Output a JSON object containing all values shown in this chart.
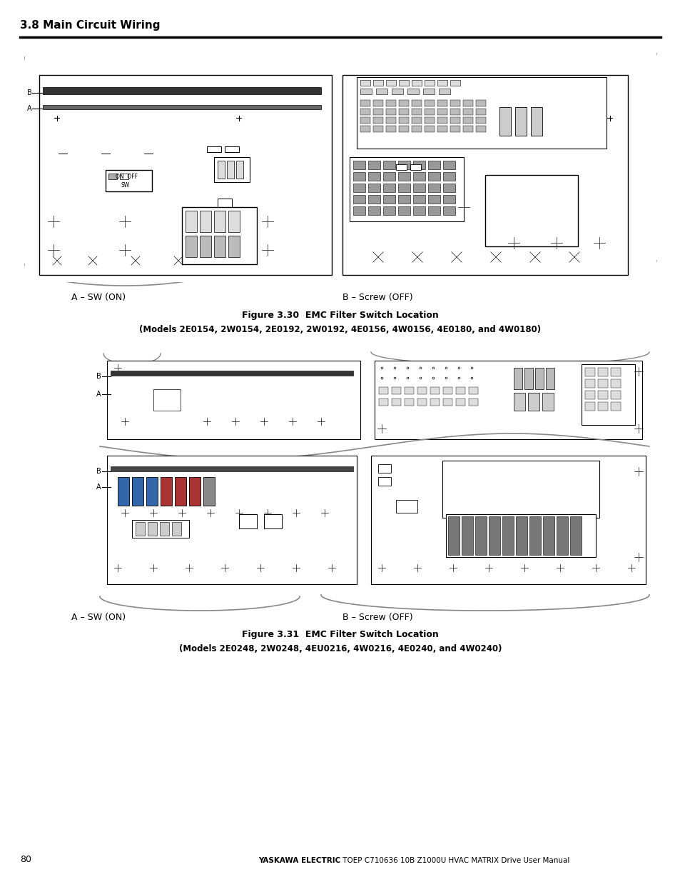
{
  "page_title": "3.8 Main Circuit Wiring",
  "page_number": "80",
  "footer_bold": "YASKAWA ELECTRIC",
  "footer_regular": " TOEP C710636 10B Z1000U HVAC MATRIX Drive User Manual",
  "fig1_label_A": "A – SW (ON)",
  "fig1_label_B": "B – Screw (OFF)",
  "fig1_caption_line1": "Figure 3.30  EMC Filter Switch Location",
  "fig1_caption_line2": "(Models 2E0154, 2W0154, 2E0192, 2W0192, 4E0156, 4W0156, 4E0180, and 4W0180)",
  "fig2_label_A": "A – SW (ON)",
  "fig2_label_B": "B – Screw (OFF)",
  "fig2_caption_line1": "Figure 3.31  EMC Filter Switch Location",
  "fig2_caption_line2": "(Models 2E0248, 2W0248, 4EU0216, 4W0216, 4E0240, and 4W0240)",
  "bg_color": "#ffffff",
  "line_color": "#000000",
  "gray_line": "#888888",
  "light_gray": "#cccccc",
  "mid_gray": "#999999",
  "dark_gray": "#444444"
}
